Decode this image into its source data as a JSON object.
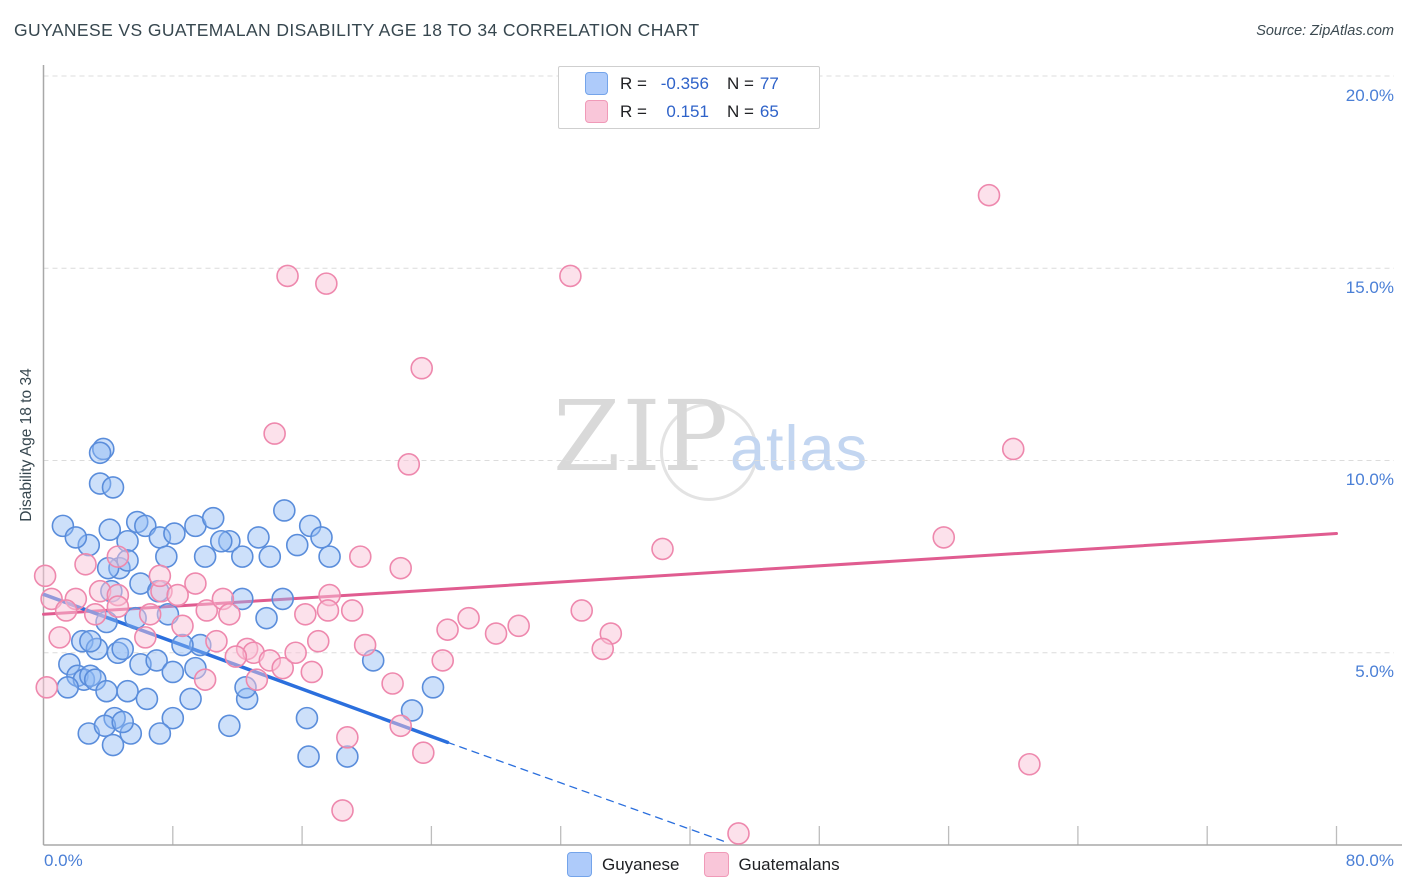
{
  "title": "GUYANESE VS GUATEMALAN DISABILITY AGE 18 TO 34 CORRELATION CHART",
  "source": "Source: ZipAtlas.com",
  "watermark": {
    "zip": "ZIP",
    "atlas": "atlas"
  },
  "y_axis": {
    "label": "Disability Age 18 to 34",
    "tick_labels": [
      "20.0%",
      "15.0%",
      "10.0%",
      "5.0%"
    ]
  },
  "x_axis": {
    "min_label": "0.0%",
    "max_label": "80.0%"
  },
  "legend_box": {
    "rows": [
      {
        "series": "Guyanese",
        "r_label": "R =",
        "r_value": "-0.356",
        "n_label": "N =",
        "n_value": "77"
      },
      {
        "series": "Guatemalans",
        "r_label": "R =",
        "r_value": "0.151",
        "n_label": "N =",
        "n_value": "65"
      }
    ]
  },
  "bottom_legend": [
    {
      "label": "Guyanese"
    },
    {
      "label": "Guatemalans"
    }
  ],
  "colors": {
    "blue_stroke": "#5a8ddb",
    "blue_fill": "rgba(144,186,244,0.45)",
    "blue_trend": "#2b6fdd",
    "pink_stroke": "#ee88ad",
    "pink_fill": "rgba(249,196,215,0.5)",
    "pink_trend": "#e05c90",
    "grid": "#dcdcdc",
    "axis": "#a8a8a8",
    "tick": "#bdbdbd",
    "label_blue": "#4a7fd6"
  },
  "chart_data": {
    "type": "scatter",
    "xlabel": "",
    "ylabel": "Disability Age 18 to 34",
    "x_range": [
      0,
      80
    ],
    "y_range": [
      0,
      20.3
    ],
    "x_tick_step_pct": 8,
    "y_gridlines_pct": [
      5,
      10,
      15,
      20
    ],
    "grid": "dashed-horizontal",
    "series": [
      {
        "name": "Guyanese",
        "r": -0.356,
        "n": 77,
        "points": [
          [
            3.7,
            10.3
          ],
          [
            3.5,
            10.2
          ],
          [
            3.5,
            9.4
          ],
          [
            4.3,
            9.3
          ],
          [
            1.2,
            8.3
          ],
          [
            4.1,
            8.2
          ],
          [
            5.8,
            8.4
          ],
          [
            6.3,
            8.3
          ],
          [
            2.8,
            7.8
          ],
          [
            2.0,
            8.0
          ],
          [
            5.2,
            7.9
          ],
          [
            7.2,
            8.0
          ],
          [
            8.1,
            8.1
          ],
          [
            9.4,
            8.3
          ],
          [
            10.5,
            8.5
          ],
          [
            11.5,
            7.9
          ],
          [
            13.3,
            8.0
          ],
          [
            14.0,
            7.5
          ],
          [
            15.7,
            7.8
          ],
          [
            16.5,
            8.3
          ],
          [
            17.2,
            8.0
          ],
          [
            17.7,
            7.5
          ],
          [
            12.3,
            7.5
          ],
          [
            10.0,
            7.5
          ],
          [
            7.6,
            7.5
          ],
          [
            4.7,
            7.2
          ],
          [
            4.0,
            7.2
          ],
          [
            5.2,
            7.4
          ],
          [
            6.0,
            6.8
          ],
          [
            4.2,
            6.6
          ],
          [
            5.7,
            5.9
          ],
          [
            3.9,
            5.8
          ],
          [
            7.7,
            6.0
          ],
          [
            9.7,
            5.2
          ],
          [
            12.3,
            6.4
          ],
          [
            13.8,
            5.9
          ],
          [
            14.9,
            8.7
          ],
          [
            1.6,
            4.7
          ],
          [
            2.4,
            5.3
          ],
          [
            3.3,
            5.1
          ],
          [
            2.1,
            4.4
          ],
          [
            2.5,
            4.3
          ],
          [
            2.9,
            4.4
          ],
          [
            3.2,
            4.3
          ],
          [
            1.5,
            4.1
          ],
          [
            2.9,
            5.3
          ],
          [
            4.6,
            5.0
          ],
          [
            4.9,
            5.1
          ],
          [
            6.0,
            4.7
          ],
          [
            7.0,
            4.8
          ],
          [
            8.0,
            4.5
          ],
          [
            9.4,
            4.6
          ],
          [
            9.1,
            3.8
          ],
          [
            5.2,
            4.0
          ],
          [
            3.9,
            4.0
          ],
          [
            4.4,
            3.3
          ],
          [
            5.4,
            2.9
          ],
          [
            2.8,
            2.9
          ],
          [
            3.8,
            3.1
          ],
          [
            4.9,
            3.2
          ],
          [
            4.3,
            2.6
          ],
          [
            8.0,
            3.3
          ],
          [
            7.2,
            2.9
          ],
          [
            6.4,
            3.8
          ],
          [
            11.5,
            3.1
          ],
          [
            12.6,
            3.8
          ],
          [
            12.5,
            4.1
          ],
          [
            8.6,
            5.2
          ],
          [
            16.3,
            3.3
          ],
          [
            16.4,
            2.3
          ],
          [
            18.8,
            2.3
          ],
          [
            20.4,
            4.8
          ],
          [
            22.8,
            3.5
          ],
          [
            24.1,
            4.1
          ],
          [
            14.8,
            6.4
          ],
          [
            11.0,
            7.9
          ],
          [
            7.1,
            6.6
          ]
        ],
        "trend": {
          "solid": [
            [
              0,
              6.52
            ],
            [
              25.0,
              2.67
            ]
          ],
          "dashed": [
            [
              25.0,
              2.67
            ],
            [
              42.4,
              0.05
            ]
          ]
        }
      },
      {
        "name": "Guatemalans",
        "r": 0.151,
        "n": 65,
        "points": [
          [
            15.1,
            14.8
          ],
          [
            17.5,
            14.6
          ],
          [
            32.6,
            14.8
          ],
          [
            23.4,
            12.4
          ],
          [
            58.5,
            16.9
          ],
          [
            22.6,
            9.9
          ],
          [
            14.3,
            10.7
          ],
          [
            60.0,
            10.3
          ],
          [
            55.7,
            8.0
          ],
          [
            61.0,
            2.1
          ],
          [
            43.0,
            0.3
          ],
          [
            18.5,
            0.9
          ],
          [
            38.3,
            7.7
          ],
          [
            0.1,
            7.0
          ],
          [
            0.5,
            6.4
          ],
          [
            3.5,
            6.6
          ],
          [
            4.6,
            6.5
          ],
          [
            6.6,
            6.0
          ],
          [
            7.3,
            6.6
          ],
          [
            8.3,
            6.5
          ],
          [
            8.6,
            5.7
          ],
          [
            10.1,
            6.1
          ],
          [
            11.1,
            6.4
          ],
          [
            11.5,
            6.0
          ],
          [
            12.6,
            5.1
          ],
          [
            10.7,
            5.3
          ],
          [
            13.0,
            5.0
          ],
          [
            14.0,
            4.8
          ],
          [
            14.8,
            4.6
          ],
          [
            15.6,
            5.0
          ],
          [
            16.6,
            4.5
          ],
          [
            13.2,
            4.3
          ],
          [
            16.2,
            6.0
          ],
          [
            17.0,
            5.3
          ],
          [
            17.7,
            6.5
          ],
          [
            17.6,
            6.1
          ],
          [
            19.1,
            6.1
          ],
          [
            19.6,
            7.5
          ],
          [
            19.9,
            5.2
          ],
          [
            21.6,
            4.2
          ],
          [
            22.1,
            3.1
          ],
          [
            23.5,
            2.4
          ],
          [
            18.8,
            2.8
          ],
          [
            24.7,
            4.8
          ],
          [
            25.0,
            5.6
          ],
          [
            26.3,
            5.9
          ],
          [
            28.0,
            5.5
          ],
          [
            29.4,
            5.7
          ],
          [
            33.3,
            6.1
          ],
          [
            35.1,
            5.5
          ],
          [
            34.6,
            5.1
          ],
          [
            22.1,
            7.2
          ],
          [
            7.2,
            7.0
          ],
          [
            9.4,
            6.8
          ],
          [
            4.6,
            7.5
          ],
          [
            2.6,
            7.3
          ],
          [
            2.0,
            6.4
          ],
          [
            1.0,
            5.4
          ],
          [
            11.9,
            4.9
          ],
          [
            10.0,
            4.3
          ],
          [
            4.6,
            6.2
          ],
          [
            3.2,
            6.0
          ],
          [
            1.4,
            6.1
          ],
          [
            0.2,
            4.1
          ],
          [
            6.3,
            5.4
          ]
        ],
        "trend": {
          "solid": [
            [
              0,
              6.0
            ],
            [
              80,
              8.1
            ]
          ]
        }
      }
    ]
  }
}
